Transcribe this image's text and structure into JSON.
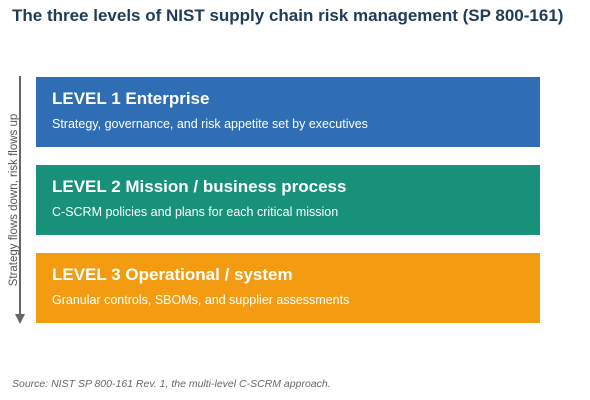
{
  "header": {
    "title": "The three levels of NIST supply chain risk management (SP 800-161)"
  },
  "side_label": "Strategy flows down, risk flows up",
  "levels": [
    {
      "label": "LEVEL 1  Enterprise",
      "description": "Strategy, governance, and risk appetite set by executives"
    },
    {
      "label": "LEVEL 2  Mission / business process",
      "description": "C-SCRM policies and plans for each critical mission"
    },
    {
      "label": "LEVEL 3  Operational / system",
      "description": "Granular controls, SBOMs, and supplier assessments"
    }
  ],
  "source": "Source: NIST SP 800-161 Rev. 1, the multi-level C-SCRM approach."
}
